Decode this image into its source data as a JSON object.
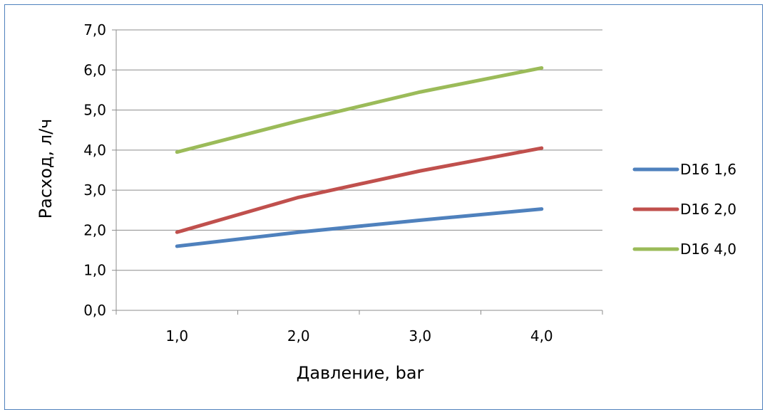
{
  "chart_data": {
    "type": "line",
    "x": [
      1.0,
      2.0,
      3.0,
      4.0
    ],
    "x_tick_labels": [
      "1,0",
      "2,0",
      "3,0",
      "4,0"
    ],
    "y_tick_labels": [
      "0,0",
      "1,0",
      "2,0",
      "3,0",
      "4,0",
      "5,0",
      "6,0",
      "7,0"
    ],
    "ylim": [
      0,
      7
    ],
    "xlabel": "Давление, bar",
    "ylabel": "Расход, л/ч",
    "grid": true,
    "legend_position": "right",
    "series": [
      {
        "name": "D16 1,6",
        "color": "#4f81bd",
        "values": [
          1.6,
          1.95,
          2.25,
          2.53
        ]
      },
      {
        "name": "D16 2,0",
        "color": "#c0504d",
        "values": [
          1.95,
          2.82,
          3.48,
          4.05
        ]
      },
      {
        "name": "D16 4,0",
        "color": "#9bbb59",
        "values": [
          3.95,
          4.73,
          5.45,
          6.05
        ]
      }
    ]
  }
}
